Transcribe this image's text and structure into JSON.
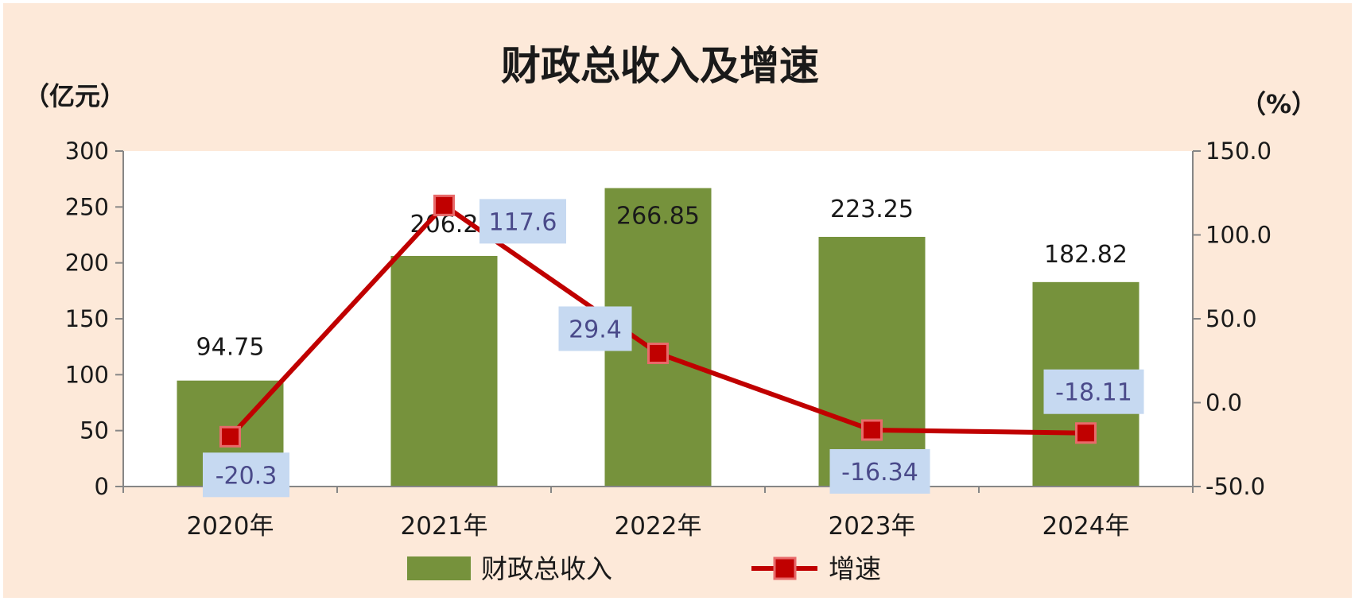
{
  "chart_data": {
    "type": "bar+line",
    "title": "财政总收入及增速",
    "y_left_unit": "（亿元）",
    "y_right_unit": "（%）",
    "categories": [
      "2020年",
      "2021年",
      "2022年",
      "2023年",
      "2024年"
    ],
    "series": [
      {
        "name": "财政总收入",
        "type": "bar",
        "axis": "left",
        "color": "#76923c",
        "values": [
          94.75,
          206.2,
          266.85,
          223.25,
          182.82
        ],
        "labels": [
          "94.75",
          "206.2",
          "266.85",
          "223.25",
          "182.82"
        ]
      },
      {
        "name": "增速",
        "type": "line",
        "axis": "right",
        "color": "#c00000",
        "values": [
          -20.3,
          117.6,
          29.4,
          -16.34,
          -18.11
        ],
        "labels": [
          "-20.3",
          "117.6",
          "29.4",
          "-16.34",
          "-18.11"
        ]
      }
    ],
    "y_left": {
      "min": 0,
      "max": 300,
      "ticks": [
        "0",
        "50",
        "100",
        "150",
        "200",
        "250",
        "300"
      ]
    },
    "y_right": {
      "min": -50,
      "max": 150,
      "ticks": [
        "-50.0",
        "0.0",
        "50.0",
        "100.0",
        "150.0"
      ]
    },
    "legend_position": "bottom",
    "colors": {
      "background": "#fde9d9",
      "plot_background": "#ffffff",
      "label_box": "#c6d9f1"
    }
  }
}
